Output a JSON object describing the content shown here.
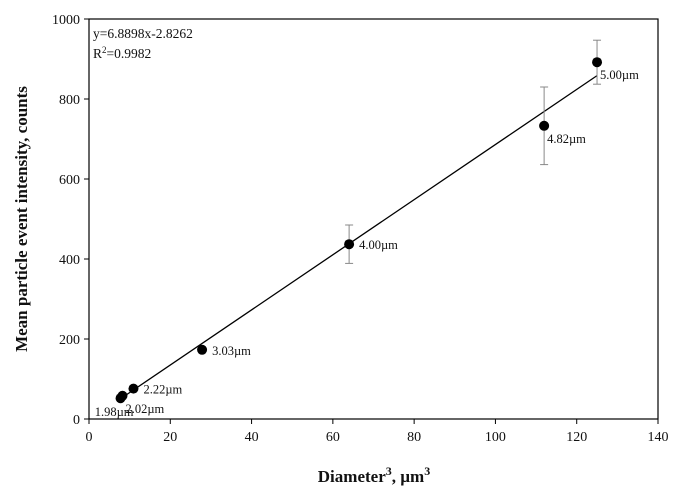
{
  "chart_data": {
    "type": "scatter",
    "xlabel": "Diameter",
    "xlabel_sup": "3",
    "xlabel_unit": ", µm",
    "xlabel_unit_sup": "3",
    "ylabel": "Mean particle event intensity, counts",
    "xlim": [
      0,
      140
    ],
    "ylim": [
      0,
      1000
    ],
    "x_ticks": [
      0,
      20,
      40,
      60,
      80,
      100,
      120,
      140
    ],
    "y_ticks": [
      0,
      200,
      400,
      600,
      800,
      1000
    ],
    "grid": false,
    "annotation": {
      "equation": "y=6.8898x-2.8262",
      "r2_prefix": "R",
      "r2_sup": "2",
      "r2_value": "=0.9982"
    },
    "fit": {
      "slope": 6.8898,
      "intercept": -2.8262,
      "x_range": [
        7.76,
        125
      ]
    },
    "points": [
      {
        "x": 7.76,
        "y": 52,
        "err": 0,
        "label": "1.98µm",
        "label_pos": "below-left"
      },
      {
        "x": 8.24,
        "y": 58,
        "err": 0,
        "label": "2.02µm",
        "label_pos": "below-right"
      },
      {
        "x": 10.94,
        "y": 76,
        "err": 0,
        "label": "2.22µm",
        "label_pos": "right"
      },
      {
        "x": 27.82,
        "y": 173,
        "err": 0,
        "label": "3.03µm",
        "label_pos": "right"
      },
      {
        "x": 64.0,
        "y": 437,
        "err": 48,
        "label": "4.00µm",
        "label_pos": "right"
      },
      {
        "x": 111.98,
        "y": 733,
        "err": 97,
        "label": "4.82µm",
        "label_pos": "below-right"
      },
      {
        "x": 125.0,
        "y": 892,
        "err": 55,
        "label": "5.00µm",
        "label_pos": "below-right"
      }
    ]
  }
}
